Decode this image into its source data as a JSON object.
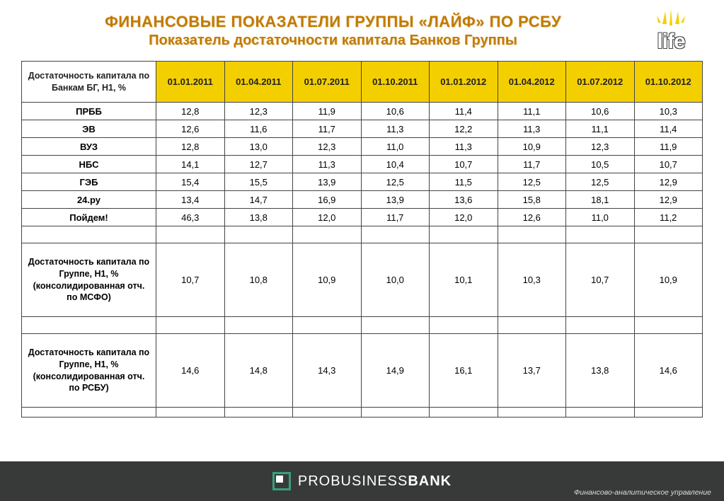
{
  "header": {
    "title_main": "ФИНАНСОВЫЕ ПОКАЗАТЕЛИ ГРУППЫ «ЛАЙФ» ПО РСБУ",
    "title_sub": "Показатель достаточности капитала Банков Группы",
    "logo_text": "life"
  },
  "table": {
    "type": "table",
    "header_bg": "#f4cf00",
    "border_color": "#444444",
    "row_header_label": "Достаточность капитала по Банкам БГ, Н1, %",
    "columns": [
      "01.01.2011",
      "01.04.2011",
      "01.07.2011",
      "01.10.2011",
      "01.01.2012",
      "01.04.2012",
      "01.07.2012",
      "01.10.2012"
    ],
    "rows": [
      {
        "label": "ПРББ",
        "v": [
          "12,8",
          "12,3",
          "11,9",
          "10,6",
          "11,4",
          "11,1",
          "10,6",
          "10,3"
        ]
      },
      {
        "label": "ЭВ",
        "v": [
          "12,6",
          "11,6",
          "11,7",
          "11,3",
          "12,2",
          "11,3",
          "11,1",
          "11,4"
        ]
      },
      {
        "label": "ВУЗ",
        "v": [
          "12,8",
          "13,0",
          "12,3",
          "11,0",
          "11,3",
          "10,9",
          "12,3",
          "11,9"
        ]
      },
      {
        "label": "НБС",
        "v": [
          "14,1",
          "12,7",
          "11,3",
          "10,4",
          "10,7",
          "11,7",
          "10,5",
          "10,7"
        ]
      },
      {
        "label": "ГЭБ",
        "v": [
          "15,4",
          "15,5",
          "13,9",
          "12,5",
          "11,5",
          "12,5",
          "12,5",
          "12,9"
        ]
      },
      {
        "label": "24.ру",
        "v": [
          "13,4",
          "14,7",
          "16,9",
          "13,9",
          "13,6",
          "15,8",
          "18,1",
          "12,9"
        ]
      },
      {
        "label": "Пойдем!",
        "v": [
          "46,3",
          "13,8",
          "12,0",
          "11,7",
          "12,0",
          "12,6",
          "11,0",
          "11,2"
        ]
      }
    ],
    "summary": [
      {
        "label": "Достаточность капитала по Группе, Н1, % (консолидированная отч. по МСФО)",
        "v": [
          "10,7",
          "10,8",
          "10,9",
          "10,0",
          "10,1",
          "10,3",
          "10,7",
          "10,9"
        ]
      },
      {
        "label": "Достаточность капитала по Группе, Н1, % (консолидированная отч. по РСБУ)",
        "v": [
          "14,6",
          "14,8",
          "14,3",
          "14,9",
          "16,1",
          "13,7",
          "13,8",
          "14,6"
        ]
      }
    ]
  },
  "footer": {
    "bank_pre": "PROBUSINESS",
    "bank_post": "BANK",
    "credit": "Финансово-аналитическое управление",
    "bar_bg": "#383a3a",
    "icon_border": "#37a07a"
  }
}
